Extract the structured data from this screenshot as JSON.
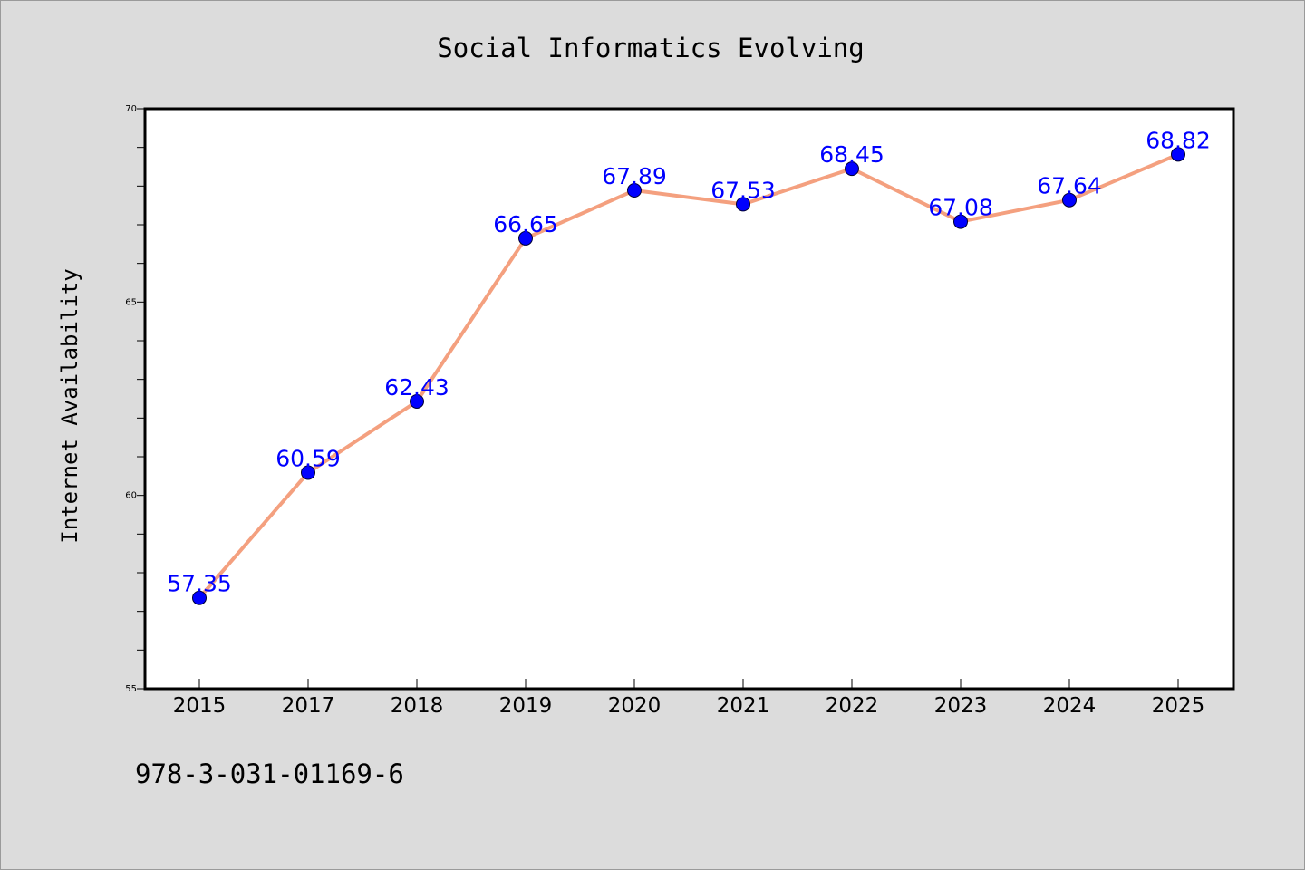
{
  "chart_data": {
    "type": "line",
    "title": "Social Informatics Evolving",
    "xlabel": "",
    "ylabel": "Internet Availability",
    "categories": [
      "2015",
      "2017",
      "2018",
      "2019",
      "2020",
      "2021",
      "2022",
      "2023",
      "2024",
      "2025"
    ],
    "series": [
      {
        "values": [
          57.35,
          60.59,
          62.43,
          66.65,
          67.89,
          67.53,
          68.45,
          67.08,
          67.64,
          68.82
        ],
        "line_color": "#f4a07f",
        "marker_color": "#0000ff"
      }
    ],
    "data_labels": [
      "57.35",
      "60.59",
      "62.43",
      "66.65",
      "67.89",
      "67.53",
      "68.45",
      "67.08",
      "67.64",
      "68.82"
    ],
    "ylim": [
      55,
      70
    ],
    "yticks": [
      "55",
      "60",
      "65",
      "70"
    ],
    "grid": false,
    "legend": "none"
  },
  "footer": {
    "isbn": "978-3-031-01169-6"
  }
}
